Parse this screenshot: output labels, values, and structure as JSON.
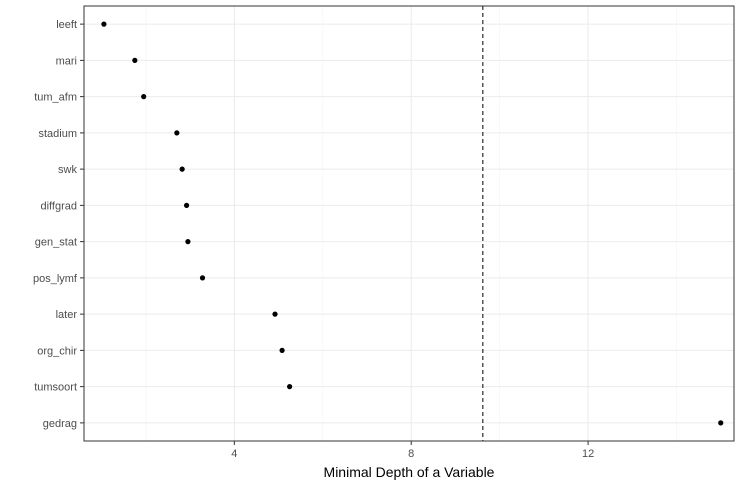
{
  "chart_data": {
    "type": "scatter",
    "title": "",
    "xlabel": "Minimal Depth of a Variable",
    "ylabel": "",
    "xlim": [
      0.6,
      15.3
    ],
    "x_ticks": [
      4,
      8,
      12
    ],
    "x_minor_ticks": [
      2,
      6,
      10,
      14
    ],
    "categories": [
      "leeft",
      "mari",
      "tum_afm",
      "stadium",
      "swk",
      "diffgrad",
      "gen_stat",
      "pos_lymf",
      "later",
      "org_chir",
      "tumsoort",
      "gedrag"
    ],
    "values": [
      1.05,
      1.75,
      1.95,
      2.7,
      2.82,
      2.92,
      2.95,
      3.28,
      4.92,
      5.08,
      5.25,
      15.0
    ],
    "reference_line": {
      "orientation": "vertical",
      "x": 9.62,
      "style": "dashed"
    },
    "grid": true,
    "legend": "none",
    "colors": {
      "points": "#000000",
      "grid": "#ebebeb",
      "border": "#333333"
    }
  }
}
